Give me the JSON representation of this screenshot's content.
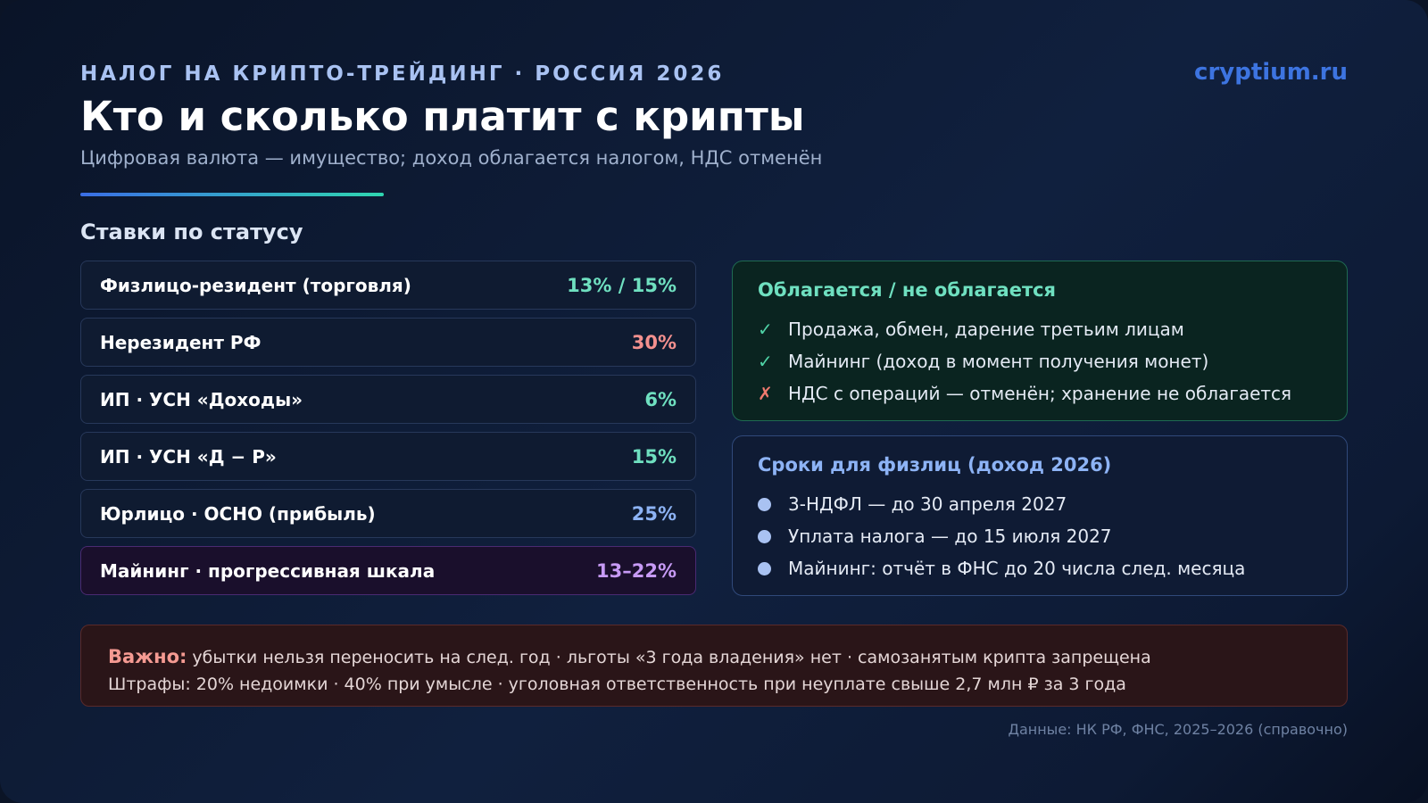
{
  "header": {
    "kicker": "НАЛОГ НА КРИПТО-ТРЕЙДИНГ · РОССИЯ 2026",
    "title": "Кто и сколько платит с крипты",
    "subtitle": "Цифровая валюта — имущество; доход облагается налогом, НДС отменён",
    "brand": "cryptium.ru"
  },
  "rates": {
    "heading": "Ставки по статусу",
    "rows": [
      {
        "label": "Физлицо-резидент (торговля)",
        "value": "13% / 15%"
      },
      {
        "label": "Нерезидент РФ",
        "value": "30%"
      },
      {
        "label": "ИП · УСН «Доходы»",
        "value": "6%"
      },
      {
        "label": "ИП · УСН «Д − Р»",
        "value": "15%"
      },
      {
        "label": "Юрлицо · ОСНО (прибыль)",
        "value": "25%"
      },
      {
        "label": "Майнинг · прогрессивная шкала",
        "value": "13–22%"
      }
    ]
  },
  "taxable": {
    "title": "Облагается / не облагается",
    "items": [
      {
        "mark": "✓",
        "text": "Продажа, обмен, дарение третьим лицам"
      },
      {
        "mark": "✓",
        "text": "Майнинг (доход в момент получения монет)"
      },
      {
        "mark": "✗",
        "text": "НДС с операций — отменён; хранение не облагается"
      }
    ]
  },
  "deadlines": {
    "title": "Сроки для физлиц (доход 2026)",
    "items": [
      "3-НДФЛ — до 30 апреля 2027",
      "Уплата налога — до 15 июля 2027",
      "Майнинг: отчёт в ФНС до 20 числа след. месяца"
    ]
  },
  "note": {
    "label": "Важно:",
    "line1": "убытки нельзя переносить на след. год · льготы «3 года владения» нет · самозанятым крипта запрещена",
    "line2": "Штрафы: 20% недоимки · 40% при умысле · уголовная ответственность при неуплате свыше 2,7 млн ₽ за 3 года"
  },
  "source": "Данные: НК РФ, ФНС, 2025–2026 (справочно)"
}
